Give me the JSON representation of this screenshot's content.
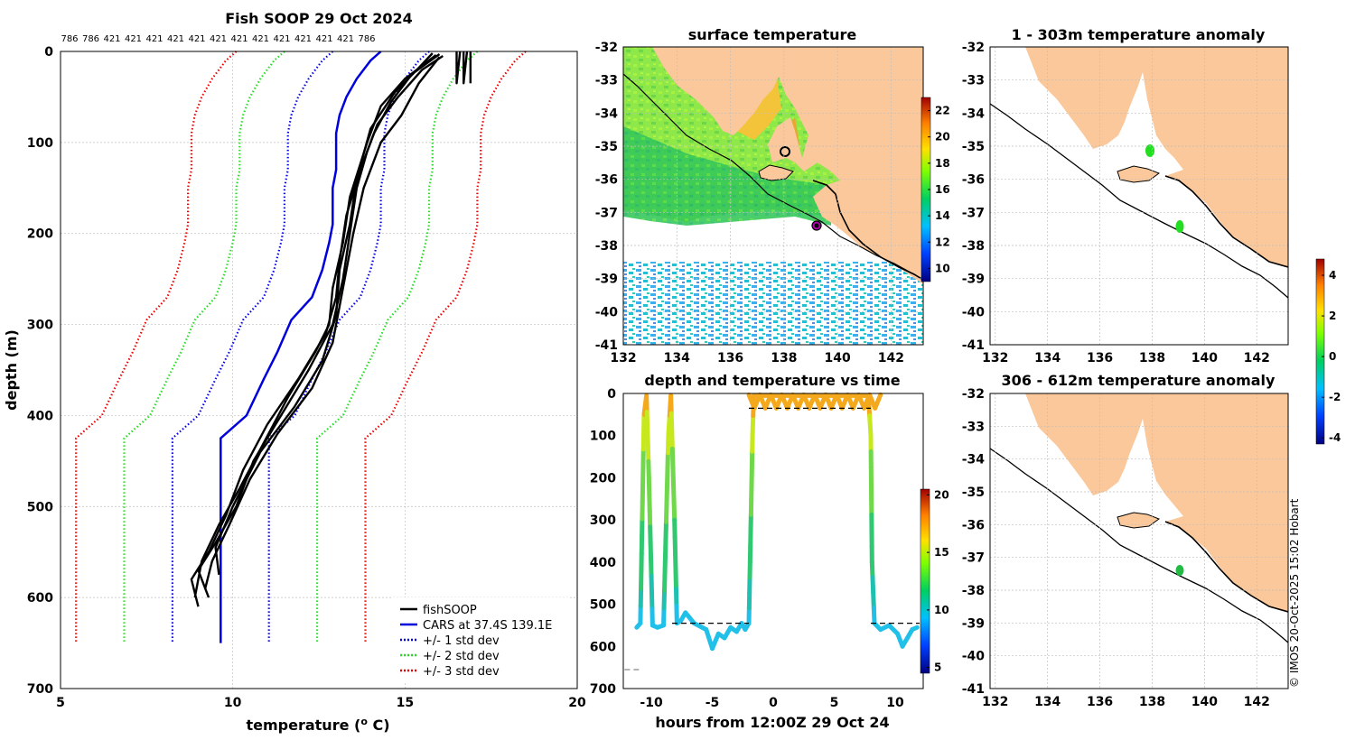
{
  "figure_title": "Fish SOOP 29 Oct 2024",
  "copyright": "© IMOS 20-Oct-2025 15:02 Hobart",
  "chart_data": [
    {
      "id": "profile",
      "type": "line",
      "title": "Fish SOOP 29 Oct 2024",
      "top_labels": [
        "786",
        "786",
        "421",
        "421",
        "421",
        "421",
        "421",
        "421",
        "421",
        "421",
        "421",
        "421",
        "421",
        "421",
        "786"
      ],
      "xlabel": "temperature (",
      "xlabel_sup": "o",
      "xlabel_end": " C)",
      "ylabel": "depth (m)",
      "xlim": [
        5,
        20
      ],
      "ylim": [
        0,
        700
      ],
      "xticks": [
        5,
        10,
        15,
        20
      ],
      "yticks": [
        0,
        100,
        200,
        300,
        400,
        500,
        600,
        700
      ],
      "legend": [
        "fishSOOP",
        "CARS at 37.4S 139.1E",
        "+/- 1 std dev",
        "+/- 2 std dev",
        "+/- 3 std dev"
      ],
      "colors": {
        "fishsoop": "#000000",
        "cars": "#0000dd",
        "sd1": "#0000ee",
        "sd2": "#22dd22",
        "sd3": "#ee0000"
      },
      "cars": [
        [
          14.3,
          0
        ],
        [
          14.0,
          10
        ],
        [
          13.6,
          30
        ],
        [
          13.3,
          50
        ],
        [
          13.1,
          70
        ],
        [
          13.0,
          90
        ],
        [
          13.0,
          110
        ],
        [
          13.0,
          130
        ],
        [
          12.9,
          150
        ],
        [
          12.9,
          170
        ],
        [
          12.9,
          190
        ],
        [
          12.8,
          210
        ],
        [
          12.6,
          240
        ],
        [
          12.3,
          270
        ],
        [
          11.7,
          295
        ],
        [
          11.3,
          330
        ],
        [
          10.9,
          360
        ],
        [
          10.4,
          400
        ],
        [
          9.65,
          425
        ],
        [
          9.65,
          650
        ]
      ],
      "sd_offsets": [
        1.4,
        2.8,
        4.2
      ],
      "fishsoop": [
        {
          "name": "cast-1",
          "points": [
            [
              16.1,
              5
            ],
            [
              15.5,
              20
            ],
            [
              14.8,
              50
            ],
            [
              14.2,
              80
            ],
            [
              13.9,
              110
            ],
            [
              13.6,
              150
            ],
            [
              13.4,
              200
            ],
            [
              13.2,
              250
            ],
            [
              12.9,
              300
            ],
            [
              12.2,
              350
            ],
            [
              11.4,
              400
            ],
            [
              10.6,
              450
            ],
            [
              10.1,
              500
            ],
            [
              9.5,
              540
            ],
            [
              9.0,
              570
            ],
            [
              9.3,
              600
            ]
          ]
        },
        {
          "name": "cast-2",
          "points": [
            [
              16.0,
              3
            ],
            [
              15.2,
              25
            ],
            [
              14.6,
              55
            ],
            [
              14.1,
              90
            ],
            [
              13.7,
              130
            ],
            [
              13.3,
              180
            ],
            [
              13.1,
              230
            ],
            [
              13.0,
              270
            ],
            [
              12.7,
              310
            ],
            [
              11.9,
              360
            ],
            [
              11.0,
              410
            ],
            [
              10.3,
              460
            ],
            [
              9.8,
              510
            ],
            [
              9.3,
              550
            ],
            [
              8.8,
              580
            ],
            [
              9.0,
              610
            ]
          ]
        },
        {
          "name": "cast-3",
          "points": [
            [
              15.9,
              4
            ],
            [
              15.0,
              30
            ],
            [
              14.3,
              60
            ],
            [
              13.9,
              100
            ],
            [
              13.4,
              160
            ],
            [
              13.2,
              210
            ],
            [
              12.9,
              260
            ],
            [
              12.8,
              300
            ],
            [
              12.4,
              330
            ],
            [
              11.6,
              380
            ],
            [
              10.9,
              430
            ],
            [
              10.2,
              480
            ],
            [
              9.6,
              520
            ],
            [
              9.1,
              560
            ],
            [
              8.9,
              600
            ]
          ]
        },
        {
          "name": "cast-4",
          "points": [
            [
              16.0,
              6
            ],
            [
              15.4,
              35
            ],
            [
              14.9,
              70
            ],
            [
              14.3,
              100
            ],
            [
              13.8,
              150
            ],
            [
              13.5,
              200
            ],
            [
              13.2,
              260
            ],
            [
              12.9,
              320
            ],
            [
              12.3,
              370
            ],
            [
              11.3,
              420
            ],
            [
              10.5,
              470
            ],
            [
              9.9,
              520
            ],
            [
              9.4,
              560
            ],
            [
              9.2,
              590
            ]
          ]
        },
        {
          "name": "cast-5",
          "points": [
            [
              15.8,
              2
            ],
            [
              15.3,
              22
            ],
            [
              14.7,
              45
            ],
            [
              14.0,
              85
            ],
            [
              13.6,
              140
            ],
            [
              13.4,
              190
            ],
            [
              13.1,
              240
            ],
            [
              13.0,
              290
            ],
            [
              12.6,
              340
            ],
            [
              11.8,
              390
            ],
            [
              10.8,
              440
            ],
            [
              10.0,
              500
            ],
            [
              9.5,
              545
            ],
            [
              9.6,
              575
            ]
          ]
        },
        {
          "name": "surface-1",
          "points": [
            [
              16.5,
              0
            ],
            [
              16.5,
              35
            ],
            [
              16.6,
              0
            ]
          ]
        },
        {
          "name": "surface-2",
          "points": [
            [
              16.7,
              0
            ],
            [
              16.7,
              35
            ],
            [
              16.8,
              0
            ]
          ]
        },
        {
          "name": "surface-3",
          "points": [
            [
              16.9,
              0
            ],
            [
              16.9,
              35
            ]
          ]
        }
      ]
    },
    {
      "id": "sst-map",
      "type": "heatmap",
      "title": "surface temperature",
      "xlim": [
        132,
        143.2
      ],
      "ylim": [
        -41,
        -32
      ],
      "xticks": [
        132,
        134,
        136,
        138,
        140,
        142
      ],
      "yticks": [
        -32,
        -33,
        -34,
        -35,
        -36,
        -37,
        -38,
        -39,
        -40,
        -41
      ],
      "colorbar_ticks": [
        10,
        12,
        14,
        16,
        18,
        20,
        22
      ],
      "colorbar_range": [
        9,
        23
      ]
    },
    {
      "id": "depth-time",
      "type": "line",
      "title": "depth and temperature vs time",
      "xlabel": "hours from 12:00Z 29 Oct 24",
      "xlim": [
        -12.3,
        12.3
      ],
      "ylim": [
        0,
        700
      ],
      "xticks": [
        -10,
        -5,
        0,
        5,
        10
      ],
      "yticks": [
        0,
        100,
        200,
        300,
        400,
        500,
        600,
        700
      ],
      "colorbar_ticks": [
        5,
        10,
        15,
        20
      ],
      "colorbar_range": [
        4.5,
        20.5
      ],
      "track": [
        [
          -11.2,
          555
        ],
        [
          -10.9,
          545
        ],
        [
          -10.6,
          50
        ],
        [
          -10.4,
          5
        ],
        [
          -10.2,
          200
        ],
        [
          -9.9,
          550
        ],
        [
          -9.5,
          555
        ],
        [
          -9.0,
          550
        ],
        [
          -8.6,
          100
        ],
        [
          -8.4,
          5
        ],
        [
          -8.1,
          300
        ],
        [
          -7.9,
          545
        ],
        [
          -7.6,
          540
        ],
        [
          -7.2,
          520
        ],
        [
          -6.5,
          545
        ],
        [
          -5.5,
          560
        ],
        [
          -5.0,
          605
        ],
        [
          -4.5,
          570
        ],
        [
          -4.0,
          580
        ],
        [
          -3.5,
          555
        ],
        [
          -3.0,
          565
        ],
        [
          -2.6,
          545
        ],
        [
          -2.3,
          560
        ],
        [
          -2.0,
          545
        ],
        [
          -1.9,
          400
        ],
        [
          -1.7,
          100
        ],
        [
          -1.6,
          5
        ],
        [
          0,
          5
        ],
        [
          4,
          5
        ],
        [
          7.5,
          5
        ],
        [
          7.8,
          5
        ],
        [
          8.0,
          100
        ],
        [
          8.1,
          400
        ],
        [
          8.3,
          545
        ],
        [
          8.8,
          560
        ],
        [
          9.5,
          550
        ],
        [
          10.2,
          570
        ],
        [
          10.6,
          600
        ],
        [
          11.0,
          580
        ],
        [
          11.4,
          560
        ],
        [
          11.8,
          555
        ]
      ],
      "dashes": [
        [
          -12.2,
          655,
          -10.8,
          655
        ],
        [
          -8.3,
          545,
          -2.0,
          545
        ],
        [
          -2.0,
          35,
          8.0,
          35
        ],
        [
          8.0,
          545,
          12.0,
          545
        ]
      ]
    },
    {
      "id": "anomaly-shallow",
      "type": "heatmap",
      "title": "1 - 303m temperature anomaly",
      "xlim": [
        131.8,
        143.2
      ],
      "ylim": [
        -41,
        -32
      ],
      "xticks": [
        132,
        134,
        136,
        138,
        140,
        142
      ],
      "yticks": [
        -32,
        -33,
        -34,
        -35,
        -36,
        -37,
        -38,
        -39,
        -40,
        -41
      ],
      "colorbar_ticks": [
        -4,
        -2,
        0,
        2,
        4
      ],
      "colorbar_range": [
        -4.3,
        4.8
      ]
    },
    {
      "id": "anomaly-deep",
      "type": "heatmap",
      "title": "306 - 612m temperature anomaly",
      "xlim": [
        131.8,
        143.2
      ],
      "ylim": [
        -41,
        -32
      ],
      "xticks": [
        132,
        134,
        136,
        138,
        140,
        142
      ],
      "yticks": [
        -32,
        -33,
        -34,
        -35,
        -36,
        -37,
        -38,
        -39,
        -40,
        -41
      ]
    }
  ]
}
